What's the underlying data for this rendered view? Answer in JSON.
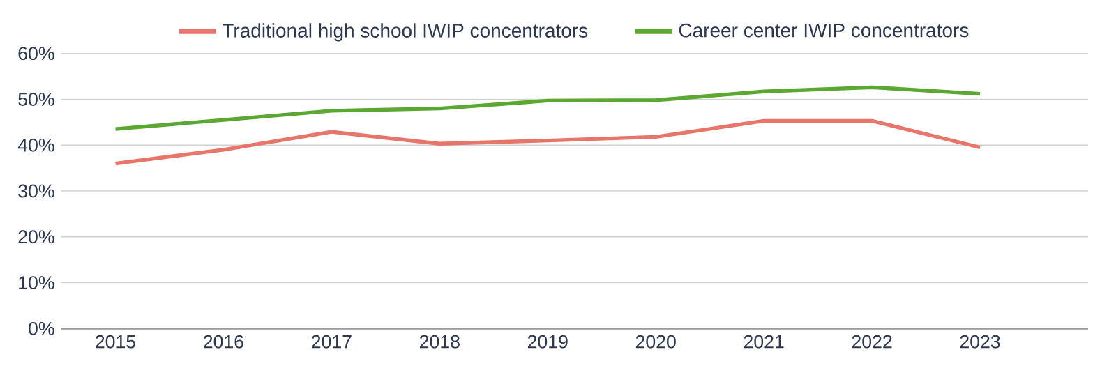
{
  "chart_data": {
    "type": "line",
    "categories": [
      "2015",
      "2016",
      "2017",
      "2018",
      "2019",
      "2020",
      "2021",
      "2022",
      "2023"
    ],
    "series": [
      {
        "name": "Traditional high school IWIP concentrators",
        "color": "#e8756a",
        "values": [
          36.0,
          39.0,
          42.9,
          40.3,
          41.0,
          41.8,
          45.3,
          45.3,
          39.5
        ]
      },
      {
        "name": "Career center IWIP concentrators",
        "color": "#5aa832",
        "values": [
          43.5,
          45.5,
          47.5,
          48.0,
          49.7,
          49.8,
          51.7,
          52.6,
          51.2
        ]
      }
    ],
    "ylim": [
      0,
      60
    ],
    "yticks": [
      {
        "value": 0,
        "label": "0%"
      },
      {
        "value": 10,
        "label": "10%"
      },
      {
        "value": 20,
        "label": "20%"
      },
      {
        "value": 30,
        "label": "30%"
      },
      {
        "value": 40,
        "label": "40%"
      },
      {
        "value": 50,
        "label": "50%"
      },
      {
        "value": 60,
        "label": "60%"
      }
    ],
    "grid": "y",
    "legend": "top",
    "marker": "none",
    "line_style": "solid"
  }
}
